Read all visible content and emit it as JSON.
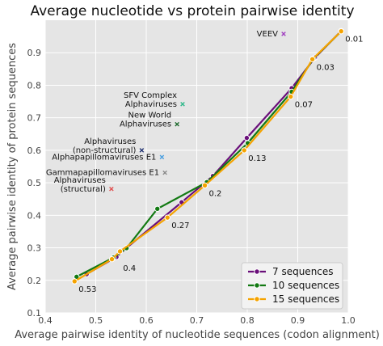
{
  "chart_data": {
    "type": "line",
    "title": "Average nucleotide vs protein pairwise identity",
    "xlabel": "Average pairwise identity of nucleotide sequences (codon alignment)",
    "ylabel": "Average pairwise identity of protein sequences",
    "xlim": [
      0.4,
      1.0
    ],
    "ylim": [
      0.1,
      1.0
    ],
    "xticks": [
      "0.4",
      "0.5",
      "0.6",
      "0.7",
      "0.8",
      "0.9",
      "1.0"
    ],
    "yticks": [
      "0.1",
      "0.2",
      "0.3",
      "0.4",
      "0.5",
      "0.6",
      "0.7",
      "0.8",
      "0.9"
    ],
    "grid": true,
    "legend_position": "bottom-right",
    "series": [
      {
        "name": "7 sequences",
        "color": "#6a0f7a",
        "points": [
          [
            0.482,
            0.219
          ],
          [
            0.541,
            0.272
          ],
          [
            0.561,
            0.3
          ],
          [
            0.67,
            0.44
          ],
          [
            0.732,
            0.521
          ],
          [
            0.799,
            0.638
          ],
          [
            0.888,
            0.791
          ],
          [
            0.934,
            0.885
          ],
          [
            0.986,
            0.967
          ]
        ]
      },
      {
        "name": "10 sequences",
        "color": "#137a13",
        "points": [
          [
            0.462,
            0.211
          ],
          [
            0.535,
            0.27
          ],
          [
            0.561,
            0.299
          ],
          [
            0.622,
            0.42
          ],
          [
            0.72,
            0.502
          ],
          [
            0.801,
            0.622
          ],
          [
            0.888,
            0.78
          ],
          [
            0.931,
            0.882
          ],
          [
            0.986,
            0.966
          ]
        ]
      },
      {
        "name": "15 sequences",
        "color": "#f5a300",
        "points": [
          [
            0.458,
            0.197
          ],
          [
            0.532,
            0.265
          ],
          [
            0.548,
            0.289
          ],
          [
            0.642,
            0.393
          ],
          [
            0.716,
            0.492
          ],
          [
            0.794,
            0.6
          ],
          [
            0.886,
            0.765
          ],
          [
            0.929,
            0.88
          ],
          [
            0.986,
            0.966
          ]
        ]
      }
    ],
    "point_labels": [
      {
        "text": "0.53",
        "x": 0.458,
        "y": 0.197
      },
      {
        "text": "0.4",
        "x": 0.546,
        "y": 0.262
      },
      {
        "text": "0.27",
        "x": 0.642,
        "y": 0.393
      },
      {
        "text": "0.2",
        "x": 0.716,
        "y": 0.492
      },
      {
        "text": "0.13",
        "x": 0.794,
        "y": 0.6
      },
      {
        "text": "0.07",
        "x": 0.886,
        "y": 0.765
      },
      {
        "text": "0.03",
        "x": 0.929,
        "y": 0.88
      },
      {
        "text": "0.01",
        "x": 0.986,
        "y": 0.966
      }
    ],
    "annotations": [
      {
        "lines": [
          "VEEV"
        ],
        "x": 0.872,
        "y": 0.958,
        "color": "#a040c0"
      },
      {
        "lines": [
          "SFV Complex",
          "Alphaviruses"
        ],
        "x": 0.672,
        "y": 0.742,
        "color": "#2fb88a"
      },
      {
        "lines": [
          "New World",
          "Alphaviruses"
        ],
        "x": 0.661,
        "y": 0.68,
        "color": "#1f6b2f"
      },
      {
        "lines": [
          "Alphaviruses",
          "(non-structural)"
        ],
        "x": 0.591,
        "y": 0.6,
        "color": "#1f3070"
      },
      {
        "lines": [
          "Alphapapillomaviruses E1"
        ],
        "x": 0.631,
        "y": 0.579,
        "color": "#4a9fe0"
      },
      {
        "lines": [
          "Gammapapillomaviruses E1"
        ],
        "x": 0.637,
        "y": 0.531,
        "color": "#888888"
      },
      {
        "lines": [
          "Alphaviruses",
          "(structural)"
        ],
        "x": 0.531,
        "y": 0.481,
        "color": "#e05050"
      }
    ]
  }
}
